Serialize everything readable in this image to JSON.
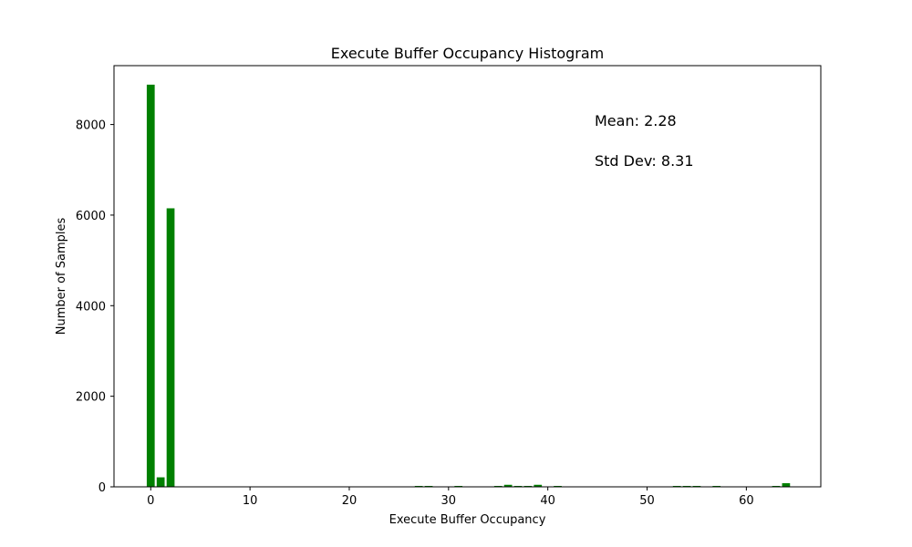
{
  "chart_data": {
    "type": "bar",
    "title": "Execute Buffer Occupancy Histogram",
    "xlabel": "Execute Buffer Occupancy",
    "ylabel": "Number of Samples",
    "xlim": [
      -3.7,
      67.5
    ],
    "ylim": [
      0,
      9300
    ],
    "xticks": [
      0,
      10,
      20,
      30,
      40,
      50,
      60
    ],
    "yticks": [
      0,
      2000,
      4000,
      6000,
      8000
    ],
    "grid": false,
    "bar_color": "#008000",
    "bar_width": 0.8,
    "x": [
      0,
      1,
      2,
      27,
      28,
      31,
      35,
      36,
      37,
      38,
      39,
      41,
      53,
      54,
      55,
      57,
      63,
      64
    ],
    "values": [
      8880,
      210,
      6150,
      20,
      20,
      20,
      20,
      45,
      20,
      20,
      45,
      20,
      20,
      20,
      20,
      20,
      20,
      80
    ],
    "annotations": [
      {
        "text": "Mean: 2.28"
      },
      {
        "text": "Std Dev: 8.31"
      }
    ]
  }
}
